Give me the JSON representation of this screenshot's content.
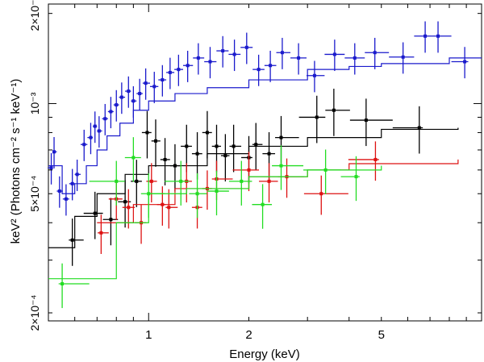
{
  "chart_data": {
    "type": "scatter",
    "xlabel": "Energy (keV)",
    "ylabel": "keV² (Photons cm⁻² s⁻¹ keV⁻¹)",
    "xscale": "log",
    "yscale": "log",
    "xlim": [
      0.5,
      10
    ],
    "ylim": [
      0.000188,
      0.00215
    ],
    "grid": false,
    "x_ticks": [
      {
        "value": 1,
        "label": "1"
      },
      {
        "value": 2,
        "label": "2"
      },
      {
        "value": 5,
        "label": "5"
      }
    ],
    "y_ticks": [
      {
        "value": 0.0002,
        "label": "2×10⁻⁴"
      },
      {
        "value": 0.0005,
        "label": "5×10⁻⁴"
      },
      {
        "value": 0.001,
        "label": "10⁻³"
      },
      {
        "value": 0.002,
        "label": "2×10⁻³"
      }
    ],
    "series": [
      {
        "color": "#1a1acc",
        "points": [
          [
            0.51,
            0.00061
          ],
          [
            0.52,
            0.00069
          ],
          [
            0.54,
            0.00051
          ],
          [
            0.565,
            0.00048
          ],
          [
            0.59,
            0.00054
          ],
          [
            0.61,
            0.00058
          ],
          [
            0.64,
            0.00073
          ],
          [
            0.67,
            0.00077
          ],
          [
            0.69,
            0.00084
          ],
          [
            0.71,
            0.00081
          ],
          [
            0.74,
            0.00089
          ],
          [
            0.77,
            0.00094
          ],
          [
            0.8,
            0.00099
          ],
          [
            0.83,
            0.00105
          ],
          [
            0.87,
            0.0011
          ],
          [
            0.9,
            0.00102
          ],
          [
            0.94,
            0.00108
          ],
          [
            0.98,
            0.00117
          ],
          [
            1.04,
            0.00114
          ],
          [
            1.1,
            0.0012
          ],
          [
            1.16,
            0.00127
          ],
          [
            1.23,
            0.0013
          ],
          [
            1.31,
            0.00134
          ],
          [
            1.41,
            0.00142
          ],
          [
            1.53,
            0.00138
          ],
          [
            1.67,
            0.0015
          ],
          [
            1.81,
            0.00146
          ],
          [
            1.97,
            0.00154
          ],
          [
            2.14,
            0.0013
          ],
          [
            2.32,
            0.00134
          ],
          [
            2.52,
            0.00148
          ],
          [
            2.82,
            0.00142
          ],
          [
            3.15,
            0.00124
          ],
          [
            3.62,
            0.00146
          ],
          [
            4.16,
            0.00142
          ],
          [
            4.78,
            0.00148
          ],
          [
            5.81,
            0.00143
          ],
          [
            6.77,
            0.00168
          ],
          [
            7.4,
            0.00168
          ],
          [
            8.9,
            0.00138
          ]
        ],
        "yerr_frac": 0.12,
        "model": [
          [
            0.5,
            0.00062
          ],
          [
            0.55,
            0.0005
          ],
          [
            0.6,
            0.00054
          ],
          [
            0.65,
            0.00062
          ],
          [
            0.7,
            0.0007
          ],
          [
            0.75,
            0.00078
          ],
          [
            0.82,
            0.00086
          ],
          [
            0.9,
            0.00095
          ],
          [
            1.0,
            0.00102
          ],
          [
            1.2,
            0.00108
          ],
          [
            1.5,
            0.00113
          ],
          [
            2.0,
            0.0012
          ],
          [
            3.0,
            0.0013
          ],
          [
            4.0,
            0.00133
          ],
          [
            5.0,
            0.00136
          ],
          [
            8.0,
            0.00142
          ],
          [
            10.0,
            0.00142
          ]
        ]
      },
      {
        "color": "#000000",
        "points": [
          [
            0.59,
            0.00035
          ],
          [
            0.69,
            0.00043
          ],
          [
            0.77,
            0.00041
          ],
          [
            0.85,
            0.00047
          ],
          [
            0.92,
            0.00055
          ],
          [
            0.99,
            0.0008
          ],
          [
            1.05,
            0.00075
          ],
          [
            1.12,
            0.00065
          ],
          [
            1.2,
            0.00062
          ],
          [
            1.3,
            0.00072
          ],
          [
            1.4,
            0.00068
          ],
          [
            1.5,
            0.0008
          ],
          [
            1.6,
            0.00072
          ],
          [
            1.7,
            0.00067
          ],
          [
            1.8,
            0.00072
          ],
          [
            2.0,
            0.00066
          ],
          [
            2.1,
            0.00073
          ],
          [
            2.3,
            0.00068
          ],
          [
            2.5,
            0.00077
          ],
          [
            3.2,
            0.0009
          ],
          [
            3.6,
            0.00095
          ],
          [
            4.5,
            0.00088
          ],
          [
            6.5,
            0.00083
          ]
        ],
        "yerr_frac": 0.18,
        "model": [
          [
            0.5,
            0.00033
          ],
          [
            0.6,
            0.00042
          ],
          [
            0.7,
            0.0005
          ],
          [
            0.85,
            0.00058
          ],
          [
            1.0,
            0.00062
          ],
          [
            1.5,
            0.00068
          ],
          [
            2.0,
            0.00072
          ],
          [
            3.0,
            0.00077
          ],
          [
            5.0,
            0.00082
          ],
          [
            8.5,
            0.00083
          ]
        ]
      },
      {
        "color": "#dd1111",
        "points": [
          [
            0.72,
            0.00037
          ],
          [
            0.8,
            0.00048
          ],
          [
            0.87,
            0.00045
          ],
          [
            0.95,
            0.0004
          ],
          [
            1.02,
            0.00055
          ],
          [
            1.1,
            0.00046
          ],
          [
            1.15,
            0.00045
          ],
          [
            1.3,
            0.00055
          ],
          [
            1.4,
            0.00045
          ],
          [
            1.5,
            0.00052
          ],
          [
            1.6,
            0.00056
          ],
          [
            2.0,
            0.0006
          ],
          [
            2.3,
            0.00055
          ],
          [
            2.6,
            0.00057
          ],
          [
            3.3,
            0.0005
          ],
          [
            4.8,
            0.00065
          ]
        ],
        "yerr_frac": 0.15,
        "model": [
          [
            0.7,
            0.0004
          ],
          [
            0.9,
            0.00046
          ],
          [
            1.2,
            0.00052
          ],
          [
            2.0,
            0.00057
          ],
          [
            3.0,
            0.0006
          ],
          [
            4.0,
            0.00063
          ],
          [
            8.5,
            0.00065
          ]
        ]
      },
      {
        "color": "#22dd22",
        "points": [
          [
            0.55,
            0.00025
          ],
          [
            0.8,
            0.00055
          ],
          [
            0.9,
            0.00066
          ],
          [
            1.0,
            0.0005
          ],
          [
            1.25,
            0.00055
          ],
          [
            1.4,
            0.0005
          ],
          [
            1.6,
            0.00051
          ],
          [
            1.9,
            0.00055
          ],
          [
            2.2,
            0.00046
          ],
          [
            2.5,
            0.00062
          ],
          [
            3.4,
            0.0006
          ],
          [
            4.2,
            0.00057
          ]
        ],
        "yerr_frac": 0.17,
        "model": [
          [
            0.5,
            0.00026
          ],
          [
            0.8,
            0.0004
          ],
          [
            1.0,
            0.0005
          ],
          [
            1.3,
            0.00052
          ],
          [
            2.0,
            0.00057
          ],
          [
            3.0,
            0.0006
          ],
          [
            5.0,
            0.00062
          ]
        ]
      }
    ]
  }
}
